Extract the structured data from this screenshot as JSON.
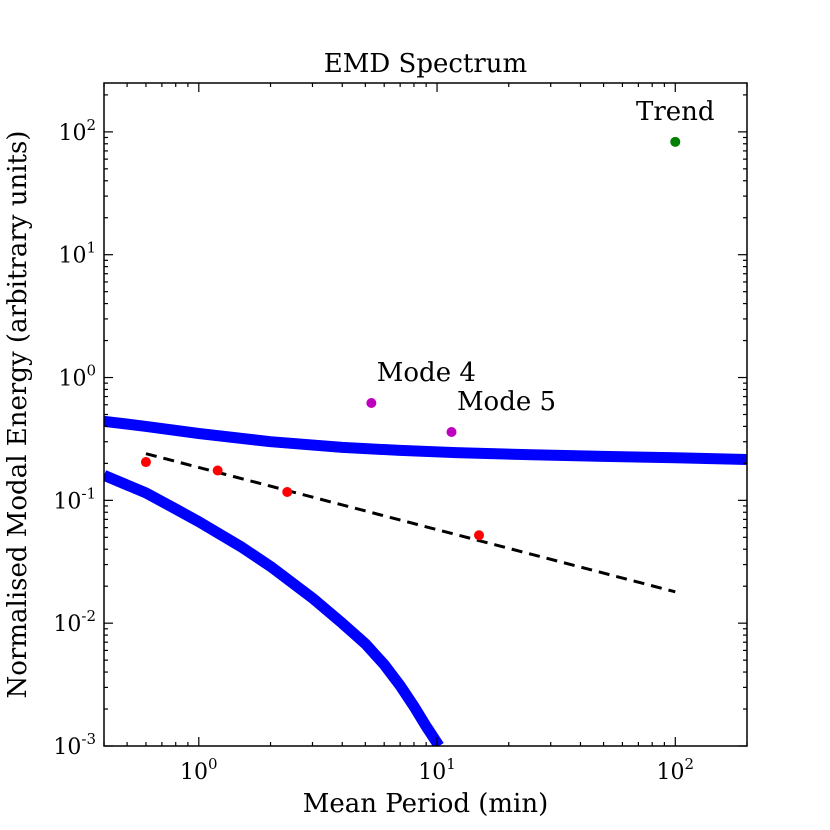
{
  "chart_data": {
    "type": "scatter",
    "title": "EMD Spectrum",
    "xlabel": "Mean Period (min)",
    "ylabel": "Normalised Modal Energy (arbitrary units)",
    "xscale": "log",
    "yscale": "log",
    "xlim": [
      0.4,
      200
    ],
    "ylim": [
      0.001,
      250
    ],
    "x_ticks": [
      {
        "value": 1,
        "base": "10",
        "exp": "0"
      },
      {
        "value": 10,
        "base": "10",
        "exp": "1"
      },
      {
        "value": 100,
        "base": "10",
        "exp": "2"
      }
    ],
    "y_ticks": [
      {
        "value": 0.001,
        "base": "10",
        "exp": "-3"
      },
      {
        "value": 0.01,
        "base": "10",
        "exp": "-2"
      },
      {
        "value": 0.1,
        "base": "10",
        "exp": "-1"
      },
      {
        "value": 1,
        "base": "10",
        "exp": "0"
      },
      {
        "value": 10,
        "base": "10",
        "exp": "1"
      },
      {
        "value": 100,
        "base": "10",
        "exp": "2"
      }
    ],
    "points": [
      {
        "name": "mode-1",
        "x": 0.6,
        "y": 0.205,
        "color": "#ff0000",
        "label": ""
      },
      {
        "name": "mode-2",
        "x": 1.2,
        "y": 0.175,
        "color": "#ff0000",
        "label": ""
      },
      {
        "name": "mode-3",
        "x": 2.35,
        "y": 0.117,
        "color": "#ff0000",
        "label": ""
      },
      {
        "name": "mode-4",
        "x": 5.3,
        "y": 0.62,
        "color": "#bf00bf",
        "label": "Mode 4"
      },
      {
        "name": "mode-5",
        "x": 11.5,
        "y": 0.36,
        "color": "#bf00bf",
        "label": "Mode 5"
      },
      {
        "name": "mode-6",
        "x": 15.0,
        "y": 0.052,
        "color": "#ff0000",
        "label": ""
      },
      {
        "name": "trend",
        "x": 100,
        "y": 83,
        "color": "#008000",
        "label": "Trend"
      }
    ],
    "fit_line": {
      "name": "power-law-fit",
      "color": "#000000",
      "style": "dashed",
      "points": [
        [
          0.6,
          0.24
        ],
        [
          100,
          0.018
        ]
      ]
    },
    "confidence_curves": [
      {
        "name": "upper-confidence-curve",
        "color": "#0000ff",
        "points": [
          [
            0.4,
            0.44
          ],
          [
            0.6,
            0.4
          ],
          [
            1,
            0.35
          ],
          [
            2,
            0.3
          ],
          [
            4,
            0.27
          ],
          [
            7,
            0.255
          ],
          [
            12,
            0.245
          ],
          [
            25,
            0.235
          ],
          [
            50,
            0.228
          ],
          [
            100,
            0.222
          ],
          [
            200,
            0.215
          ]
        ]
      },
      {
        "name": "lower-confidence-curve",
        "color": "#0000ff",
        "points": [
          [
            0.4,
            0.16
          ],
          [
            0.6,
            0.115
          ],
          [
            0.8,
            0.085
          ],
          [
            1,
            0.067
          ],
          [
            1.5,
            0.042
          ],
          [
            2,
            0.029
          ],
          [
            3,
            0.016
          ],
          [
            4,
            0.01
          ],
          [
            5,
            0.0068
          ],
          [
            6,
            0.0046
          ],
          [
            7,
            0.0031
          ],
          [
            8,
            0.0021
          ],
          [
            9,
            0.00145
          ],
          [
            10.2,
            0.001
          ]
        ]
      }
    ]
  }
}
